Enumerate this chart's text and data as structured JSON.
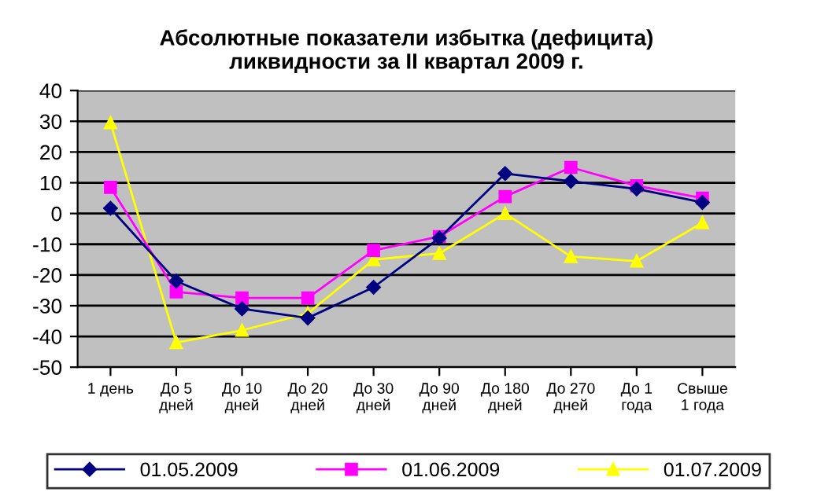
{
  "chart_data": {
    "type": "line",
    "title": "Абсолютные показатели избытка (дефицита)\nликвидности за II квартал 2009 г.",
    "categories": [
      "1 день",
      "До 5\nдней",
      "До 10\nдней",
      "До 20\nдней",
      "До 30\nдней",
      "До 90\nдней",
      "До 180\nдней",
      "До 270\nдней",
      "До 1\nгода",
      "Свыше\n1 года"
    ],
    "series": [
      {
        "name": "01.05.2009",
        "color": "#000080",
        "marker": "diamond",
        "values": [
          1.7,
          -22,
          -31,
          -34,
          -24,
          -8,
          13,
          10.5,
          8,
          3.6
        ]
      },
      {
        "name": "01.06.2009",
        "color": "#ff00ff",
        "marker": "square",
        "values": [
          8.5,
          -25.5,
          -27.5,
          -27.5,
          -12,
          -7.5,
          5.5,
          15,
          9,
          5
        ]
      },
      {
        "name": "01.07.2009",
        "color": "#ffff00",
        "marker": "triangle",
        "values": [
          29.5,
          -42,
          -38,
          -32.5,
          -15,
          -13,
          0,
          -14,
          -15.5,
          -3
        ]
      }
    ],
    "ylim": [
      -50,
      40
    ],
    "yticks": [
      -50,
      -40,
      -30,
      -20,
      -10,
      0,
      10,
      20,
      30,
      40
    ],
    "grid": "y",
    "legend": "bottom"
  }
}
